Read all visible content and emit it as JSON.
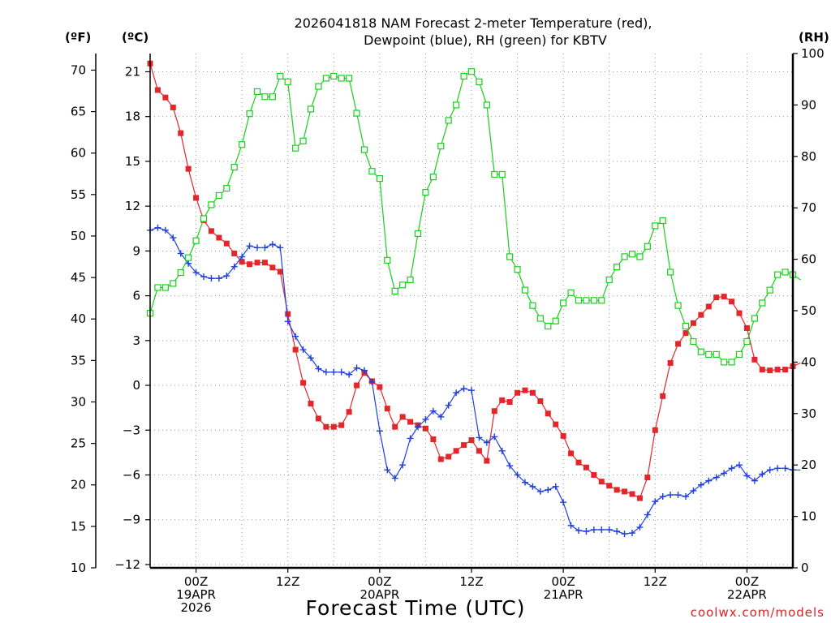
{
  "chart_data": {
    "type": "line",
    "title": [
      "2026041818 NAM Forecast 2-meter Temperature (red),",
      "Dewpoint (blue), RH (green) for KBTV"
    ],
    "xlabel": "Forecast Time (UTC)",
    "credit": "coolwx.com/models",
    "units": {
      "left_f": "(ºF)",
      "left_c": "(ºC)",
      "right": "(RH)"
    },
    "x_start": "2026-04-18 18Z",
    "x_step_hours": 1,
    "xlim_hours": [
      0,
      84
    ],
    "xticks": [
      {
        "hour": 6,
        "lines": [
          "00Z",
          "19APR",
          "2026"
        ]
      },
      {
        "hour": 18,
        "lines": [
          "12Z"
        ]
      },
      {
        "hour": 30,
        "lines": [
          "00Z",
          "20APR"
        ]
      },
      {
        "hour": 42,
        "lines": [
          "12Z"
        ]
      },
      {
        "hour": 54,
        "lines": [
          "00Z",
          "21APR"
        ]
      },
      {
        "hour": 66,
        "lines": [
          "12Z"
        ]
      },
      {
        "hour": 78,
        "lines": [
          "00Z",
          "22APR"
        ]
      }
    ],
    "y_f": {
      "lim": [
        10,
        72
      ],
      "ticks": [
        10,
        15,
        20,
        25,
        30,
        35,
        40,
        45,
        50,
        55,
        60,
        65,
        70
      ]
    },
    "y_c": {
      "lim": [
        -12.22,
        22.22
      ],
      "ticks": [
        -12,
        -9,
        -6,
        -3,
        0,
        3,
        6,
        9,
        12,
        15,
        18,
        21
      ]
    },
    "y_rh": {
      "lim": [
        0,
        100
      ],
      "ticks": [
        0,
        10,
        20,
        30,
        40,
        50,
        60,
        70,
        80,
        90,
        100
      ]
    },
    "grid": true,
    "series": [
      {
        "name": "Temperature",
        "axis": "F",
        "color": "#e3262a",
        "marker": "filled-square",
        "values": [
          70.8,
          67.6,
          66.7,
          65.5,
          62.4,
          58.1,
          54.6,
          51.9,
          50.6,
          49.8,
          49.1,
          47.9,
          46.9,
          46.6,
          46.8,
          46.8,
          46.2,
          45.7,
          40.6,
          36.3,
          32.3,
          29.8,
          28.0,
          27.0,
          27.0,
          27.2,
          28.8,
          32.0,
          33.5,
          32.5,
          31.8,
          29.2,
          27.0,
          28.2,
          27.6,
          27.2,
          26.8,
          25.5,
          23.1,
          23.4,
          24.1,
          24.8,
          25.4,
          24.1,
          22.9,
          28.9,
          30.2,
          30.0,
          31.1,
          31.4,
          31.1,
          30.1,
          28.6,
          27.3,
          25.9,
          23.8,
          22.7,
          22.1,
          21.2,
          20.4,
          19.9,
          19.4,
          19.2,
          18.9,
          18.4,
          20.9,
          26.6,
          30.7,
          34.7,
          37.0,
          38.3,
          39.5,
          40.5,
          41.5,
          42.6,
          42.7,
          42.1,
          40.7,
          38.9,
          35.1,
          33.9,
          33.8,
          33.9,
          33.9,
          34.3,
          34.7
        ]
      },
      {
        "name": "Dewpoint",
        "axis": "F",
        "color": "#1f3fe0",
        "marker": "plus",
        "values": [
          50.7,
          51.0,
          50.7,
          49.8,
          47.9,
          46.7,
          45.6,
          45.1,
          44.9,
          44.9,
          45.2,
          46.3,
          47.5,
          48.8,
          48.6,
          48.6,
          49.0,
          48.6,
          39.7,
          37.9,
          36.3,
          35.3,
          34.0,
          33.6,
          33.6,
          33.6,
          33.3,
          34.1,
          33.8,
          32.4,
          26.5,
          21.8,
          20.8,
          22.4,
          25.6,
          27.0,
          27.9,
          28.9,
          28.2,
          29.6,
          31.1,
          31.6,
          31.4,
          25.7,
          25.1,
          25.8,
          24.1,
          22.3,
          21.2,
          20.3,
          19.8,
          19.2,
          19.4,
          19.8,
          17.9,
          15.1,
          14.5,
          14.4,
          14.6,
          14.6,
          14.6,
          14.4,
          14.1,
          14.2,
          14.9,
          16.4,
          18.0,
          18.6,
          18.8,
          18.8,
          18.6,
          19.3,
          20.0,
          20.5,
          20.9,
          21.4,
          22.0,
          22.4,
          21.1,
          20.5,
          21.3,
          21.8,
          22.0,
          22.0,
          21.8,
          21.8
        ]
      },
      {
        "name": "RH",
        "axis": "RH",
        "color": "#16d119",
        "marker": "open-square",
        "values": [
          49.5,
          54.5,
          54.5,
          55.3,
          57.4,
          60.3,
          63.6,
          67.9,
          70.6,
          72.4,
          73.8,
          77.9,
          82.3,
          88.3,
          92.6,
          91.6,
          91.6,
          95.6,
          94.5,
          81.6,
          83.0,
          89.2,
          93.6,
          95.2,
          95.6,
          95.2,
          95.2,
          88.4,
          81.3,
          77.1,
          75.7,
          59.8,
          53.8,
          55.0,
          56.0,
          65.0,
          73.0,
          76.0,
          82.0,
          87.0,
          90.0,
          95.6,
          96.5,
          94.5,
          90.0,
          76.5,
          76.5,
          60.5,
          58.0,
          54.0,
          51.0,
          48.5,
          47.0,
          48.0,
          51.5,
          53.5,
          52.0,
          52.0,
          52.0,
          52.0,
          56.0,
          58.5,
          60.5,
          61.0,
          60.5,
          62.5,
          66.5,
          67.5,
          57.5,
          51.0,
          47.0,
          44.0,
          42.0,
          41.5,
          41.5,
          40.0,
          40.0,
          41.5,
          44.0,
          48.5,
          51.5,
          54.0,
          57.0,
          57.5,
          57.0,
          56.0
        ]
      }
    ]
  }
}
